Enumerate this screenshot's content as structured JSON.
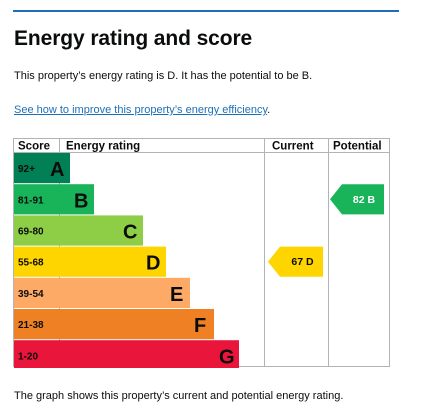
{
  "page": {
    "title": "Energy rating and score",
    "summary": "This property’s energy rating is D. It has the potential to be B.",
    "improve_link": "See how to improve this property’s energy efficiency",
    "improve_link_suffix": ".",
    "footer_note": "The graph shows this property’s current and potential energy rating."
  },
  "chart_data": {
    "type": "table",
    "columns": [
      "Score",
      "Energy rating",
      "Current",
      "Potential"
    ],
    "bands": [
      {
        "score": "92+",
        "letter": "A",
        "color": "#008054"
      },
      {
        "score": "81-91",
        "letter": "B",
        "color": "#19b459"
      },
      {
        "score": "69-80",
        "letter": "C",
        "color": "#8dce46"
      },
      {
        "score": "55-68",
        "letter": "D",
        "color": "#ffd500"
      },
      {
        "score": "39-54",
        "letter": "E",
        "color": "#fcaa65"
      },
      {
        "score": "21-38",
        "letter": "F",
        "color": "#ef8023"
      },
      {
        "score": "1-20",
        "letter": "G",
        "color": "#e9153b"
      }
    ],
    "current": {
      "score": 67,
      "letter": "D",
      "label": "67 D",
      "color": "#ffd500"
    },
    "potential": {
      "score": 82,
      "letter": "B",
      "label": "82 B",
      "color": "#19b459"
    }
  },
  "colors": {
    "link": "#1d70b8",
    "text": "#0b0c0c",
    "grid": "#b1b4b6"
  }
}
